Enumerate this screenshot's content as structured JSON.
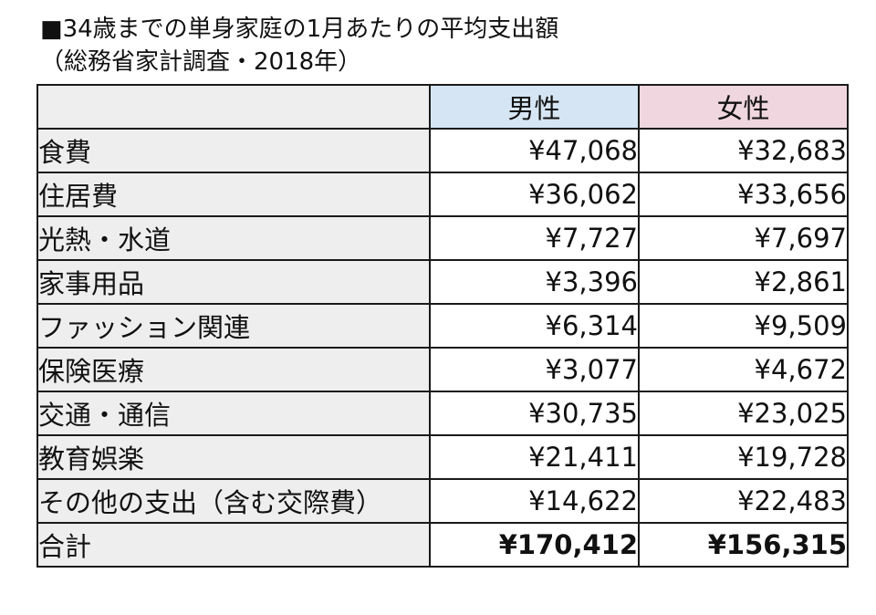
{
  "title": {
    "line1": "■34歳までの単身家庭の1月あたりの平均支出額",
    "line2": "（総務省家計調査・2018年）"
  },
  "table": {
    "headers": {
      "category": "",
      "male": "男性",
      "female": "女性"
    },
    "rows": [
      {
        "category": "食費",
        "male": "¥47,068",
        "female": "¥32,683"
      },
      {
        "category": "住居費",
        "male": "¥36,062",
        "female": "¥33,656"
      },
      {
        "category": "光熱・水道",
        "male": "¥7,727",
        "female": "¥7,697"
      },
      {
        "category": "家事用品",
        "male": "¥3,396",
        "female": "¥2,861"
      },
      {
        "category": "ファッション関連",
        "male": "¥6,314",
        "female": "¥9,509"
      },
      {
        "category": "保険医療",
        "male": "¥3,077",
        "female": "¥4,672"
      },
      {
        "category": "交通・通信",
        "male": "¥30,735",
        "female": "¥23,025"
      },
      {
        "category": "教育娯楽",
        "male": "¥21,411",
        "female": "¥19,728"
      },
      {
        "category": "その他の支出（含む交際費）",
        "male": "¥14,622",
        "female": "¥22,483"
      }
    ],
    "total": {
      "category": "合計",
      "male": "¥170,412",
      "female": "¥156,315"
    }
  },
  "colors": {
    "male_header": "#d6e5f3",
    "female_header": "#efd6df",
    "category_bg": "#eeeeee",
    "border": "#1a1a1a"
  }
}
